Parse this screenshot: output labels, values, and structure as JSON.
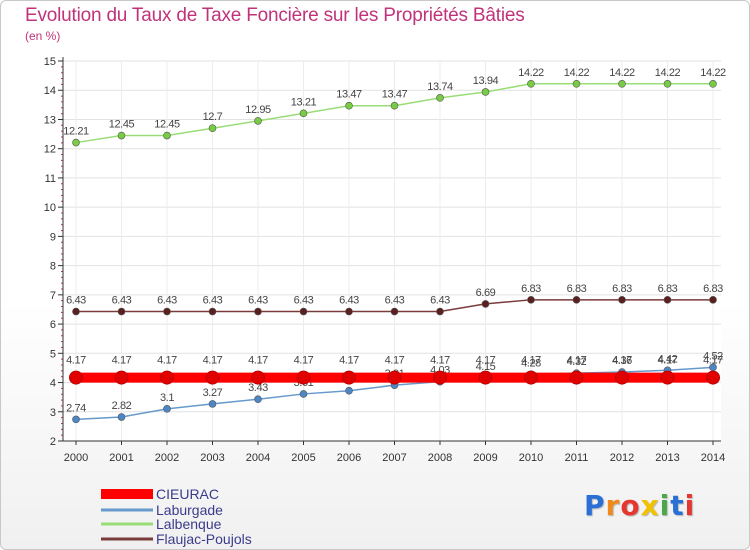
{
  "title": "Evolution du Taux de Taxe Foncière sur les Propriétés Bâties",
  "unit": "(en %)",
  "logo": {
    "letters": [
      "P",
      "r",
      "o",
      "x",
      "i",
      "t",
      "i"
    ],
    "colors": [
      "#2a6fd6",
      "#f08a1c",
      "#e5372f",
      "#f2c200",
      "#4aa84a",
      "#2a6fd6",
      "#e5372f"
    ]
  },
  "chart_data": {
    "type": "line",
    "title": "Evolution du Taux de Taxe Foncière sur les Propriétés Bâties",
    "ylabel": "(en %)",
    "xlabel": "",
    "ylim": [
      2,
      15
    ],
    "yticks": [
      2,
      3,
      4,
      5,
      6,
      7,
      8,
      9,
      10,
      11,
      12,
      13,
      14,
      15
    ],
    "x": [
      2000,
      2001,
      2002,
      2003,
      2004,
      2005,
      2006,
      2007,
      2008,
      2009,
      2010,
      2011,
      2012,
      2013,
      2014
    ],
    "series": [
      {
        "name": "CIEURAC",
        "color": "#ff0000",
        "values": [
          4.17,
          4.17,
          4.17,
          4.17,
          4.17,
          4.17,
          4.17,
          4.17,
          4.17,
          4.17,
          4.17,
          4.17,
          4.17,
          4.17,
          4.17
        ],
        "labels": [
          "4.17",
          "4.17",
          "4.17",
          "4.17",
          "4.17",
          "4.17",
          "4.17",
          "4.17",
          "4.17",
          "4.17",
          "4.17",
          "4.17",
          "4.17",
          "4.17",
          "4.17"
        ]
      },
      {
        "name": "Laburgade",
        "color": "#6699cc",
        "values": [
          2.74,
          2.82,
          3.1,
          3.27,
          3.43,
          3.61,
          3.72,
          3.91,
          4.03,
          4.15,
          4.28,
          4.32,
          4.36,
          4.42,
          4.52
        ],
        "labels": [
          "2.74",
          "2.82",
          "3.1",
          "3.27",
          "3.43",
          "3.61",
          "3.72",
          "3.91",
          "4.03",
          "4.15",
          "4.28",
          "4.32",
          "4.36",
          "4.42",
          "4.52"
        ]
      },
      {
        "name": "Lalbenque",
        "color": "#99dd77",
        "values": [
          12.21,
          12.45,
          12.45,
          12.7,
          12.95,
          13.21,
          13.47,
          13.47,
          13.74,
          13.94,
          14.22,
          14.22,
          14.22,
          14.22,
          14.22
        ],
        "labels": [
          "12.21",
          "12.45",
          "12.45",
          "12.7",
          "12.95",
          "13.21",
          "13.47",
          "13.47",
          "13.74",
          "13.94",
          "14.22",
          "14.22",
          "14.22",
          "14.22",
          "14.22"
        ]
      },
      {
        "name": "Flaujac-Poujols",
        "color": "#7a3b3b",
        "values": [
          6.43,
          6.43,
          6.43,
          6.43,
          6.43,
          6.43,
          6.43,
          6.43,
          6.43,
          6.69,
          6.83,
          6.83,
          6.83,
          6.83,
          6.83
        ],
        "labels": [
          "6.43",
          "6.43",
          "6.43",
          "6.43",
          "6.43",
          "6.43",
          "6.43",
          "6.43",
          "6.43",
          "6.69",
          "6.83",
          "6.83",
          "6.83",
          "6.83",
          "6.83"
        ]
      }
    ],
    "legend": "bottom-left"
  }
}
